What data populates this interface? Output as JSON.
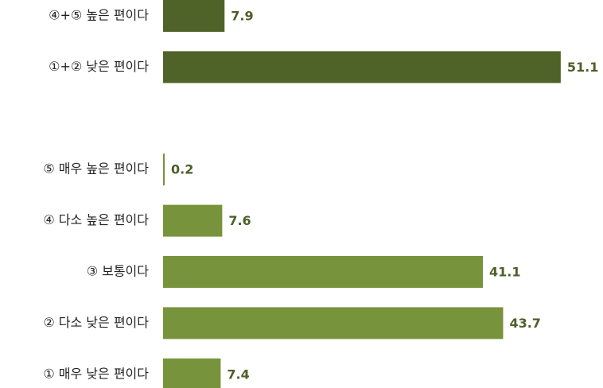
{
  "chart_data": {
    "type": "bar",
    "orientation": "horizontal",
    "categories": [
      "④+⑤ 높은 편이다",
      "①+② 낮은 편이다",
      null,
      "⑤ 매우 높은 편이다",
      "④ 다소 높은 편이다",
      "③ 보통이다",
      "② 다소 낮은 편이다",
      "① 매우 낮은 편이다"
    ],
    "values": [
      7.9,
      51.1,
      null,
      0.2,
      7.6,
      41.1,
      43.7,
      7.4
    ],
    "colors": [
      "#4f6228",
      "#4f6228",
      null,
      "#77933c",
      "#77933c",
      "#77933c",
      "#77933c",
      "#77933c"
    ],
    "xlim": [
      0,
      55
    ]
  }
}
